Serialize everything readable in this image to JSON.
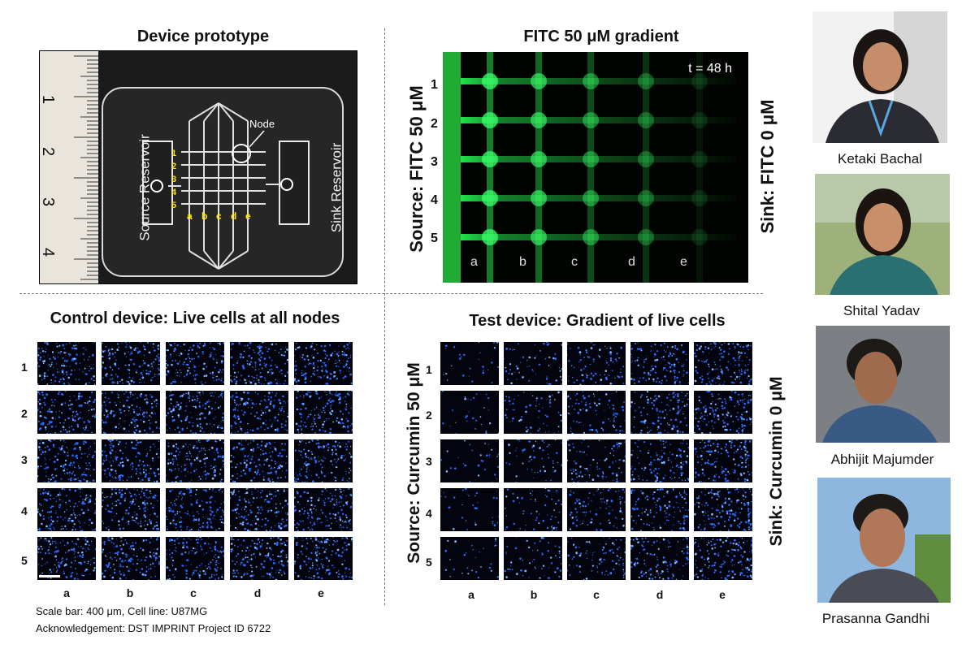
{
  "panels": {
    "prototype": {
      "title": "Device prototype",
      "source_label": "Source Reservoir",
      "sink_label": "Sink Reservoir",
      "node_label": "Node",
      "rows": [
        "1",
        "2",
        "3",
        "4",
        "5"
      ],
      "cols": [
        "a",
        "b",
        "c",
        "d",
        "e"
      ],
      "ruler_marks": [
        "1",
        "2",
        "3",
        "4"
      ]
    },
    "fitc": {
      "title": "FITC 50 μM gradient",
      "time_label": "t = 48 h",
      "left_label": "Source: FITC 50 μM",
      "right_label": "Sink: FITC 0 μM",
      "rows": [
        "1",
        "2",
        "3",
        "4",
        "5"
      ],
      "cols": [
        "a",
        "b",
        "c",
        "d",
        "e"
      ],
      "color": "#22e04a"
    },
    "control": {
      "title": "Control device: Live cells at all nodes",
      "rows": [
        "1",
        "2",
        "3",
        "4",
        "5"
      ],
      "cols": [
        "a",
        "b",
        "c",
        "d",
        "e"
      ]
    },
    "test": {
      "title": "Test device: Gradient of live cells",
      "left_label": "Source: Curcumin 50 μM",
      "right_label": "Sink: Curcumin 0 μM",
      "rows": [
        "1",
        "2",
        "3",
        "4",
        "5"
      ],
      "cols": [
        "a",
        "b",
        "c",
        "d",
        "e"
      ]
    }
  },
  "footer": {
    "scale": "Scale bar: 400 μm, Cell line: U87MG",
    "ack": "Acknowledgement: DST IMPRINT Project ID 6722"
  },
  "people": [
    {
      "name": "Ketaki Bachal",
      "photo_icon": "portrait-photo"
    },
    {
      "name": "Shital Yadav",
      "photo_icon": "portrait-photo"
    },
    {
      "name": "Abhijit Majumder",
      "photo_icon": "portrait-photo"
    },
    {
      "name": "Prasanna Gandhi",
      "photo_icon": "portrait-photo"
    }
  ],
  "colors": {
    "cell_stain": "#2a6bff",
    "fitc_green": "#22e04a"
  }
}
